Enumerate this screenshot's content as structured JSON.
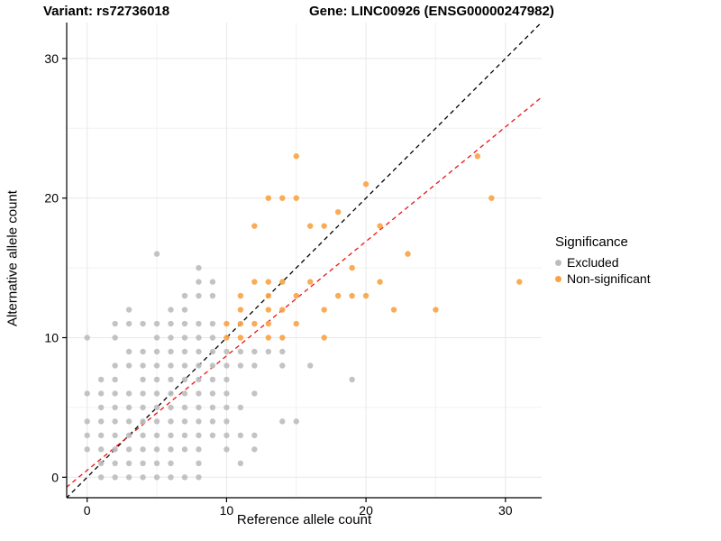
{
  "chart_data": {
    "type": "scatter",
    "title_left": "Variant: rs72736018",
    "title_right": "Gene: LINC00926 (ENSG00000247982)",
    "xlabel": "Reference allele count",
    "ylabel": "Alternative allele count",
    "xlim": [
      -1.5,
      32.6
    ],
    "ylim": [
      -1.5,
      32.6
    ],
    "x_ticks": [
      0,
      10,
      20,
      30
    ],
    "y_ticks": [
      0,
      10,
      20,
      30
    ],
    "x_minor_ticks": [
      5,
      15,
      25
    ],
    "y_minor_ticks": [
      5,
      15,
      25
    ],
    "grid": "on",
    "point_radius": 3.2,
    "legend": {
      "title": "Significance",
      "items": [
        {
          "label": "Excluded",
          "color": "#bdbdbd"
        },
        {
          "label": "Non-significant",
          "color": "#f9a242"
        }
      ]
    },
    "series": [
      {
        "name": "Excluded",
        "color": "#bdbdbd",
        "points": [
          [
            1,
            0
          ],
          [
            2,
            0
          ],
          [
            3,
            0
          ],
          [
            4,
            0
          ],
          [
            5,
            0
          ],
          [
            6,
            0
          ],
          [
            7,
            0
          ],
          [
            8,
            0
          ],
          [
            1,
            1
          ],
          [
            2,
            1
          ],
          [
            3,
            1
          ],
          [
            4,
            1
          ],
          [
            5,
            1
          ],
          [
            6,
            1
          ],
          [
            8,
            1
          ],
          [
            11,
            1
          ],
          [
            0,
            2
          ],
          [
            1,
            2
          ],
          [
            2,
            2
          ],
          [
            3,
            2
          ],
          [
            4,
            2
          ],
          [
            5,
            2
          ],
          [
            6,
            2
          ],
          [
            7,
            2
          ],
          [
            8,
            2
          ],
          [
            10,
            2
          ],
          [
            12,
            2
          ],
          [
            0,
            3
          ],
          [
            1,
            3
          ],
          [
            2,
            3
          ],
          [
            3,
            3
          ],
          [
            4,
            3
          ],
          [
            5,
            3
          ],
          [
            6,
            3
          ],
          [
            7,
            3
          ],
          [
            8,
            3
          ],
          [
            9,
            3
          ],
          [
            10,
            3
          ],
          [
            11,
            3
          ],
          [
            12,
            3
          ],
          [
            0,
            4
          ],
          [
            1,
            4
          ],
          [
            2,
            4
          ],
          [
            3,
            4
          ],
          [
            4,
            4
          ],
          [
            5,
            4
          ],
          [
            6,
            4
          ],
          [
            7,
            4
          ],
          [
            8,
            4
          ],
          [
            9,
            4
          ],
          [
            10,
            4
          ],
          [
            14,
            4
          ],
          [
            15,
            4
          ],
          [
            1,
            5
          ],
          [
            2,
            5
          ],
          [
            3,
            5
          ],
          [
            4,
            5
          ],
          [
            5,
            5
          ],
          [
            6,
            5
          ],
          [
            7,
            5
          ],
          [
            8,
            5
          ],
          [
            9,
            5
          ],
          [
            10,
            5
          ],
          [
            11,
            5
          ],
          [
            0,
            6
          ],
          [
            1,
            6
          ],
          [
            2,
            6
          ],
          [
            3,
            6
          ],
          [
            4,
            6
          ],
          [
            5,
            6
          ],
          [
            6,
            6
          ],
          [
            7,
            6
          ],
          [
            8,
            6
          ],
          [
            9,
            6
          ],
          [
            10,
            6
          ],
          [
            12,
            6
          ],
          [
            1,
            7
          ],
          [
            2,
            7
          ],
          [
            4,
            7
          ],
          [
            5,
            7
          ],
          [
            6,
            7
          ],
          [
            7,
            7
          ],
          [
            8,
            7
          ],
          [
            9,
            7
          ],
          [
            10,
            7
          ],
          [
            19,
            7
          ],
          [
            2,
            8
          ],
          [
            3,
            8
          ],
          [
            4,
            8
          ],
          [
            5,
            8
          ],
          [
            6,
            8
          ],
          [
            7,
            8
          ],
          [
            8,
            8
          ],
          [
            9,
            8
          ],
          [
            10,
            8
          ],
          [
            11,
            8
          ],
          [
            12,
            8
          ],
          [
            14,
            8
          ],
          [
            16,
            8
          ],
          [
            3,
            9
          ],
          [
            4,
            9
          ],
          [
            5,
            9
          ],
          [
            6,
            9
          ],
          [
            7,
            9
          ],
          [
            8,
            9
          ],
          [
            9,
            9
          ],
          [
            10,
            9
          ],
          [
            11,
            9
          ],
          [
            12,
            9
          ],
          [
            13,
            9
          ],
          [
            14,
            9
          ],
          [
            0,
            10
          ],
          [
            2,
            10
          ],
          [
            5,
            10
          ],
          [
            6,
            10
          ],
          [
            7,
            10
          ],
          [
            8,
            10
          ],
          [
            9,
            10
          ],
          [
            2,
            11
          ],
          [
            3,
            11
          ],
          [
            4,
            11
          ],
          [
            5,
            11
          ],
          [
            6,
            11
          ],
          [
            7,
            11
          ],
          [
            8,
            11
          ],
          [
            9,
            11
          ],
          [
            3,
            12
          ],
          [
            6,
            12
          ],
          [
            7,
            12
          ],
          [
            7,
            13
          ],
          [
            8,
            13
          ],
          [
            9,
            13
          ],
          [
            8,
            14
          ],
          [
            9,
            14
          ],
          [
            8,
            15
          ],
          [
            5,
            16
          ]
        ]
      },
      {
        "name": "Non-significant",
        "color": "#f9a242",
        "points": [
          [
            10,
            10
          ],
          [
            11,
            10
          ],
          [
            13,
            10
          ],
          [
            14,
            10
          ],
          [
            17,
            10
          ],
          [
            10,
            11
          ],
          [
            11,
            11
          ],
          [
            12,
            11
          ],
          [
            13,
            11
          ],
          [
            15,
            11
          ],
          [
            11,
            12
          ],
          [
            13,
            12
          ],
          [
            14,
            12
          ],
          [
            17,
            12
          ],
          [
            22,
            12
          ],
          [
            25,
            12
          ],
          [
            11,
            13
          ],
          [
            13,
            13
          ],
          [
            15,
            13
          ],
          [
            18,
            13
          ],
          [
            19,
            13
          ],
          [
            20,
            13
          ],
          [
            12,
            14
          ],
          [
            13,
            14
          ],
          [
            14,
            14
          ],
          [
            16,
            14
          ],
          [
            21,
            14
          ],
          [
            31,
            14
          ],
          [
            19,
            15
          ],
          [
            23,
            16
          ],
          [
            12,
            18
          ],
          [
            16,
            18
          ],
          [
            17,
            18
          ],
          [
            21,
            18
          ],
          [
            18,
            19
          ],
          [
            13,
            20
          ],
          [
            14,
            20
          ],
          [
            15,
            20
          ],
          [
            29,
            20
          ],
          [
            20,
            21
          ],
          [
            15,
            23
          ],
          [
            28,
            23
          ]
        ]
      }
    ],
    "ref_lines": [
      {
        "name": "identity-line",
        "color": "#000000",
        "x1": -1.5,
        "y1": -1.5,
        "x2": 32.6,
        "y2": 32.6
      },
      {
        "name": "fit-line",
        "color": "#ee1111",
        "x1": -1.5,
        "y1": -0.73,
        "x2": 32.6,
        "y2": 27.23
      }
    ]
  },
  "style": {
    "grid_major_color": "#e8e8e8",
    "grid_minor_color": "#f2f2f2",
    "axis_color": "#000000",
    "panel_bg": "#ffffff"
  }
}
